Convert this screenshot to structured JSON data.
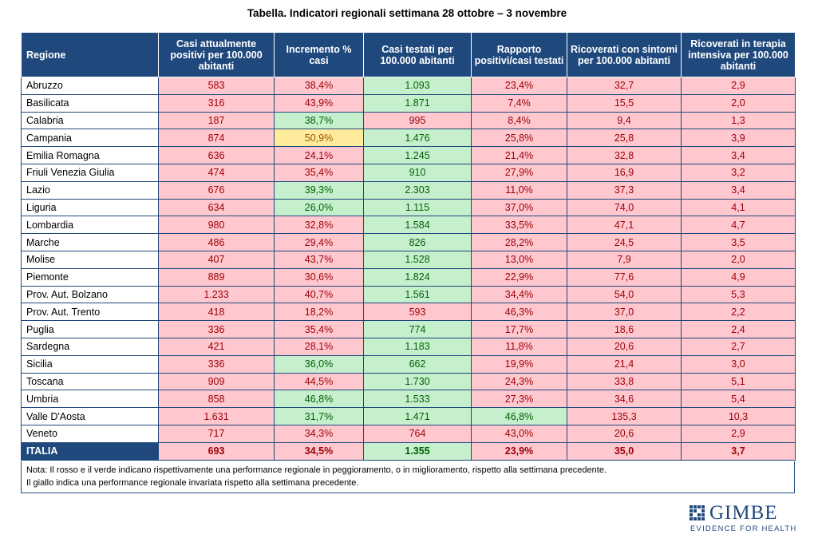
{
  "title": "Tabella. Indicatori regionali settimana 28 ottobre – 3 novembre",
  "headers": {
    "regione": "Regione",
    "c1": "Casi attualmente positivi per 100.000 abitanti",
    "c2": "Incremento % casi",
    "c3": "Casi testati per 100.000 abitanti",
    "c4": "Rapporto positivi/casi testati",
    "c5": "Ricoverati con sintomi per 100.000 abitanti",
    "c6": "Ricoverati in terapia intensiva per 100.000 abitanti"
  },
  "colors": {
    "header_bg": "#1f497d",
    "red_bg": "#ffc7ce",
    "red_text": "#9c0006",
    "green_bg": "#c6efce",
    "green_text": "#006100",
    "yellow_bg": "#ffeb9c",
    "yellow_text": "#9c5700"
  },
  "rows": [
    {
      "regione": "Abruzzo",
      "c1": "583",
      "c2": "38,4%",
      "c3": "1.093",
      "c4": "23,4%",
      "c5": "32,7",
      "c6": "2,9",
      "status": [
        "r",
        "r",
        "g",
        "r",
        "r",
        "r"
      ]
    },
    {
      "regione": "Basilicata",
      "c1": "316",
      "c2": "43,9%",
      "c3": "1.871",
      "c4": "7,4%",
      "c5": "15,5",
      "c6": "2,0",
      "status": [
        "r",
        "r",
        "g",
        "r",
        "r",
        "r"
      ]
    },
    {
      "regione": "Calabria",
      "c1": "187",
      "c2": "38,7%",
      "c3": "995",
      "c4": "8,4%",
      "c5": "9,4",
      "c6": "1,3",
      "status": [
        "r",
        "g",
        "r",
        "r",
        "r",
        "r"
      ]
    },
    {
      "regione": "Campania",
      "c1": "874",
      "c2": "50,9%",
      "c3": "1.476",
      "c4": "25,8%",
      "c5": "25,8",
      "c6": "3,9",
      "status": [
        "r",
        "y",
        "g",
        "r",
        "r",
        "r"
      ]
    },
    {
      "regione": "Emilia Romagna",
      "c1": "636",
      "c2": "24,1%",
      "c3": "1.245",
      "c4": "21,4%",
      "c5": "32,8",
      "c6": "3,4",
      "status": [
        "r",
        "r",
        "g",
        "r",
        "r",
        "r"
      ]
    },
    {
      "regione": "Friuli Venezia Giulia",
      "c1": "474",
      "c2": "35,4%",
      "c3": "910",
      "c4": "27,9%",
      "c5": "16,9",
      "c6": "3,2",
      "status": [
        "r",
        "r",
        "g",
        "r",
        "r",
        "r"
      ]
    },
    {
      "regione": "Lazio",
      "c1": "676",
      "c2": "39,3%",
      "c3": "2.303",
      "c4": "11,0%",
      "c5": "37,3",
      "c6": "3,4",
      "status": [
        "r",
        "g",
        "g",
        "r",
        "r",
        "r"
      ]
    },
    {
      "regione": "Liguria",
      "c1": "634",
      "c2": "26,0%",
      "c3": "1.115",
      "c4": "37,0%",
      "c5": "74,0",
      "c6": "4,1",
      "status": [
        "r",
        "g",
        "g",
        "r",
        "r",
        "r"
      ]
    },
    {
      "regione": "Lombardia",
      "c1": "980",
      "c2": "32,8%",
      "c3": "1.584",
      "c4": "33,5%",
      "c5": "47,1",
      "c6": "4,7",
      "status": [
        "r",
        "r",
        "g",
        "r",
        "r",
        "r"
      ]
    },
    {
      "regione": "Marche",
      "c1": "486",
      "c2": "29,4%",
      "c3": "826",
      "c4": "28,2%",
      "c5": "24,5",
      "c6": "3,5",
      "status": [
        "r",
        "r",
        "g",
        "r",
        "r",
        "r"
      ]
    },
    {
      "regione": "Molise",
      "c1": "407",
      "c2": "43,7%",
      "c3": "1.528",
      "c4": "13,0%",
      "c5": "7,9",
      "c6": "2,0",
      "status": [
        "r",
        "r",
        "g",
        "r",
        "r",
        "r"
      ]
    },
    {
      "regione": "Piemonte",
      "c1": "889",
      "c2": "30,6%",
      "c3": "1.824",
      "c4": "22,9%",
      "c5": "77,6",
      "c6": "4,9",
      "status": [
        "r",
        "r",
        "g",
        "r",
        "r",
        "r"
      ]
    },
    {
      "regione": "Prov. Aut. Bolzano",
      "c1": "1.233",
      "c2": "40,7%",
      "c3": "1.561",
      "c4": "34,4%",
      "c5": "54,0",
      "c6": "5,3",
      "status": [
        "r",
        "r",
        "g",
        "r",
        "r",
        "r"
      ]
    },
    {
      "regione": "Prov. Aut. Trento",
      "c1": "418",
      "c2": "18,2%",
      "c3": "593",
      "c4": "46,3%",
      "c5": "37,0",
      "c6": "2,2",
      "status": [
        "r",
        "r",
        "r",
        "r",
        "r",
        "r"
      ]
    },
    {
      "regione": "Puglia",
      "c1": "336",
      "c2": "35,4%",
      "c3": "774",
      "c4": "17,7%",
      "c5": "18,6",
      "c6": "2,4",
      "status": [
        "r",
        "r",
        "g",
        "r",
        "r",
        "r"
      ]
    },
    {
      "regione": "Sardegna",
      "c1": "421",
      "c2": "28,1%",
      "c3": "1.183",
      "c4": "11,8%",
      "c5": "20,6",
      "c6": "2,7",
      "status": [
        "r",
        "r",
        "g",
        "r",
        "r",
        "r"
      ]
    },
    {
      "regione": "Sicilia",
      "c1": "336",
      "c2": "36,0%",
      "c3": "662",
      "c4": "19,9%",
      "c5": "21,4",
      "c6": "3,0",
      "status": [
        "r",
        "g",
        "g",
        "r",
        "r",
        "r"
      ]
    },
    {
      "regione": "Toscana",
      "c1": "909",
      "c2": "44,5%",
      "c3": "1.730",
      "c4": "24,3%",
      "c5": "33,8",
      "c6": "5,1",
      "status": [
        "r",
        "r",
        "g",
        "r",
        "r",
        "r"
      ]
    },
    {
      "regione": "Umbria",
      "c1": "858",
      "c2": "46,8%",
      "c3": "1.533",
      "c4": "27,3%",
      "c5": "34,6",
      "c6": "5,4",
      "status": [
        "r",
        "g",
        "g",
        "r",
        "r",
        "r"
      ]
    },
    {
      "regione": "Valle D'Aosta",
      "c1": "1.631",
      "c2": "31,7%",
      "c3": "1.471",
      "c4": "46,8%",
      "c5": "135,3",
      "c6": "10,3",
      "status": [
        "r",
        "g",
        "g",
        "g",
        "r",
        "r"
      ]
    },
    {
      "regione": "Veneto",
      "c1": "717",
      "c2": "34,3%",
      "c3": "764",
      "c4": "43,0%",
      "c5": "20,6",
      "c6": "2,9",
      "status": [
        "r",
        "r",
        "r",
        "r",
        "r",
        "r"
      ]
    }
  ],
  "total": {
    "regione": "ITALIA",
    "c1": "693",
    "c2": "34,5%",
    "c3": "1.355",
    "c4": "23,9%",
    "c5": "35,0",
    "c6": "3,7",
    "status": [
      "r",
      "r",
      "g",
      "r",
      "r",
      "r"
    ]
  },
  "note": {
    "line1": "Nota: Il rosso e il verde indicano rispettivamente una performance regionale in peggioramento, o in miglioramento, rispetto alla settimana precedente.",
    "line2": "Il giallo indica una performance regionale invariata rispetto alla settimana precedente."
  },
  "logo": {
    "name": "GIMBE",
    "tagline": "EVIDENCE FOR HEALTH",
    "icon": "gimbe-grid-logo-icon"
  }
}
